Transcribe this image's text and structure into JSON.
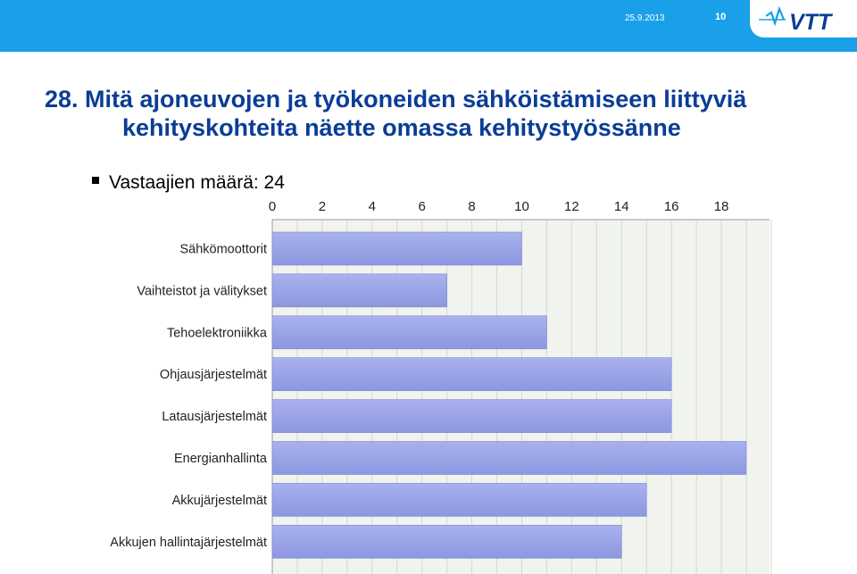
{
  "header": {
    "date": "25.9.2013",
    "page_number": "10",
    "logo_text": "VTT"
  },
  "slide": {
    "title_line1": "28. Mitä ajoneuvojen ja työkoneiden sähköistämiseen liittyviä",
    "title_line2": "kehityskohteita näette omassa kehitystyössänne",
    "bullet": "Vastaajien määrä: 24"
  },
  "colors": {
    "header": "#1aa0e8",
    "title": "#0a3d96",
    "bar": "#8d97e0"
  },
  "chart_data": {
    "type": "bar",
    "orientation": "horizontal",
    "categories": [
      "Sähkömoottorit",
      "Vaihteistot ja välitykset",
      "Tehoelektroniikka",
      "Ohjausjärjestelmät",
      "Latausjärjestelmät",
      "Energianhallinta",
      "Akkujärjestelmät",
      "Akkujen hallintajärjestelmät"
    ],
    "values": [
      10,
      7,
      11,
      16,
      16,
      19,
      15,
      14
    ],
    "x_ticks": [
      0,
      2,
      4,
      6,
      8,
      10,
      12,
      14,
      16,
      18
    ],
    "xlim": [
      0,
      20
    ],
    "axis_position": "top",
    "grid": true
  }
}
